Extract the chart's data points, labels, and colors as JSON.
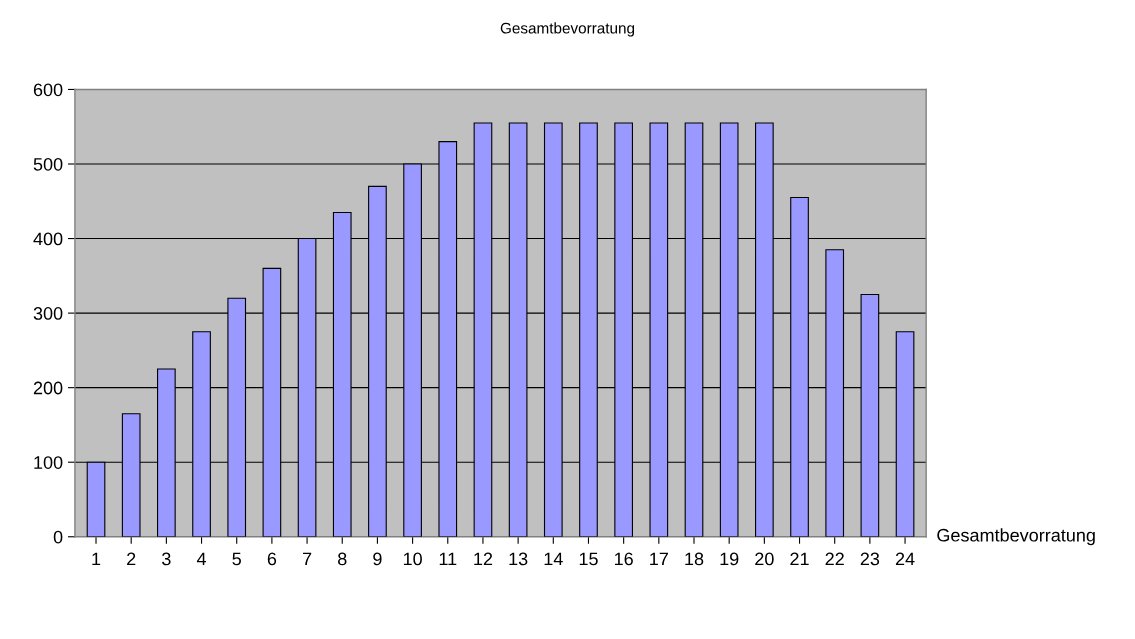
{
  "chart_data": {
    "type": "bar",
    "title": "Gesamtbevorratung",
    "categories": [
      "1",
      "2",
      "3",
      "4",
      "5",
      "6",
      "7",
      "8",
      "9",
      "10",
      "11",
      "12",
      "13",
      "14",
      "15",
      "16",
      "17",
      "18",
      "19",
      "20",
      "21",
      "22",
      "23",
      "24"
    ],
    "series": [
      {
        "name": "Gesamtbevorratung",
        "color": "#9999ff",
        "values": [
          100,
          165,
          225,
          275,
          320,
          360,
          400,
          435,
          470,
          500,
          530,
          555,
          555,
          555,
          555,
          555,
          555,
          555,
          555,
          555,
          455,
          385,
          325,
          275
        ]
      }
    ],
    "ylim": [
      0,
      600
    ],
    "yticks": [
      0,
      100,
      200,
      300,
      400,
      500,
      600
    ],
    "grid": "y",
    "legend": false
  }
}
